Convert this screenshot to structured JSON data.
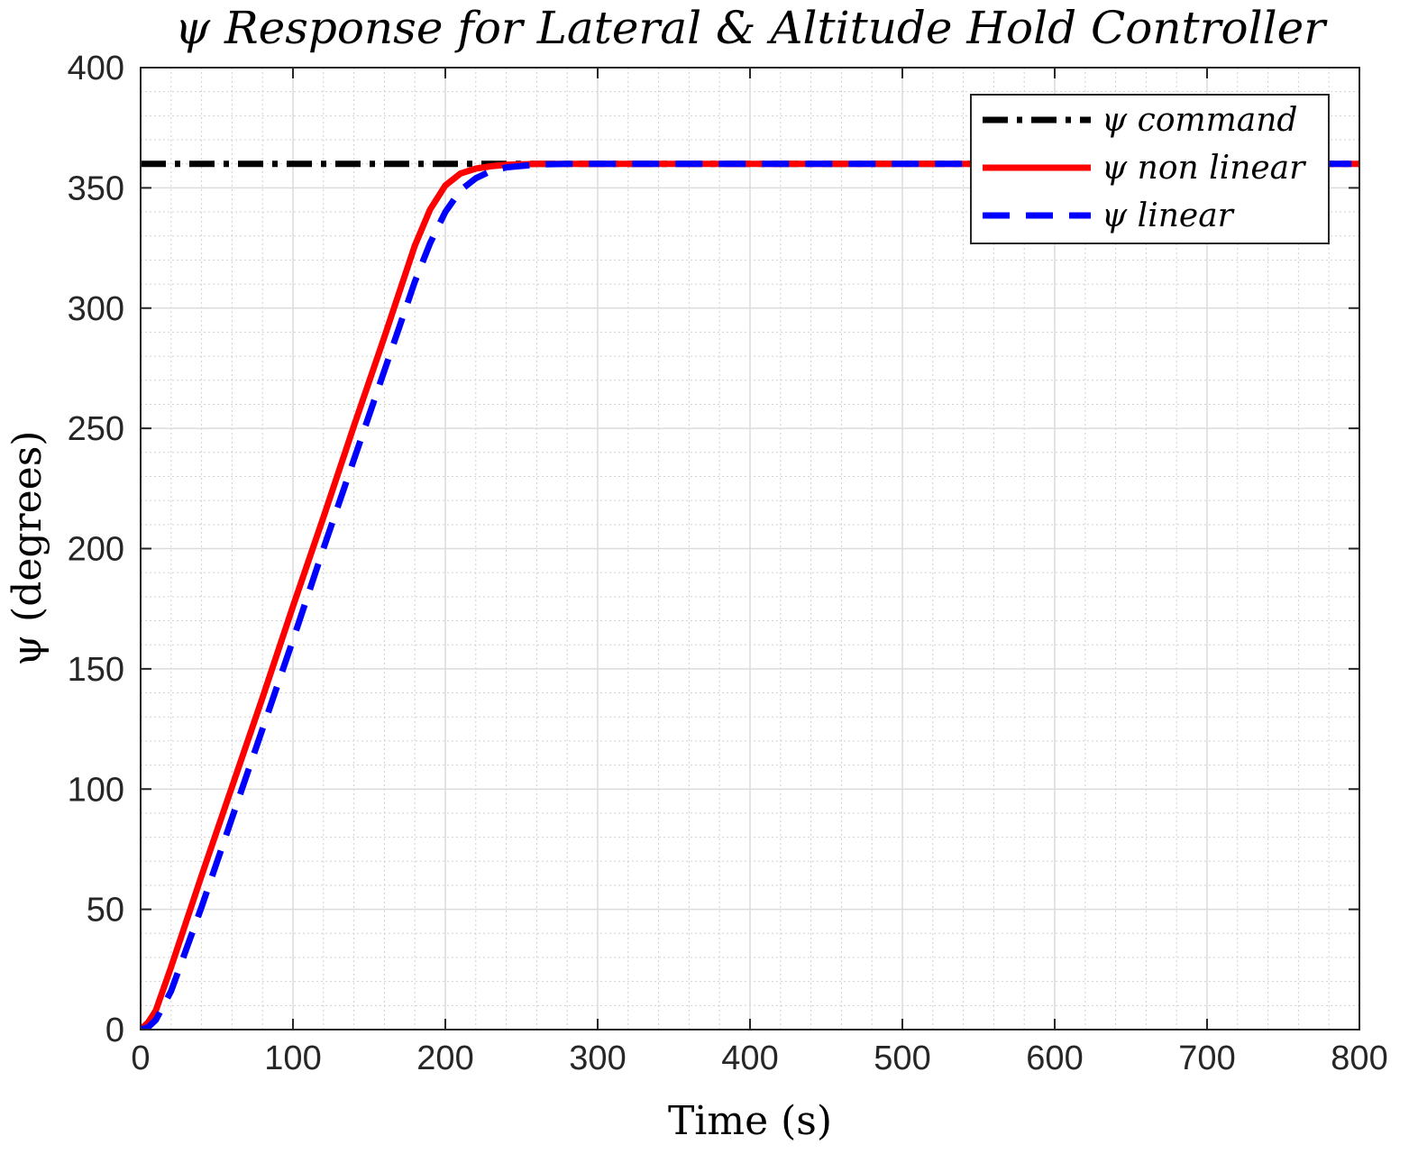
{
  "chart_data": {
    "type": "line",
    "title": "ψ Response for Lateral & Altitude Hold Controller",
    "xlabel": "Time (s)",
    "ylabel": "ψ (degrees)",
    "xlim": [
      0,
      800
    ],
    "ylim": [
      0,
      400
    ],
    "xticks": [
      "0",
      "100",
      "200",
      "300",
      "400",
      "500",
      "600",
      "700",
      "800"
    ],
    "yticks": [
      "0",
      "50",
      "100",
      "150",
      "200",
      "250",
      "300",
      "350",
      "400"
    ],
    "grid": true,
    "minor_grid": true,
    "legend_position": "top-right",
    "series": [
      {
        "name": "ψ command",
        "color": "#000000",
        "style": "dash-dot",
        "x": [
          0,
          800
        ],
        "y": [
          360,
          360
        ]
      },
      {
        "name": "ψ non linear",
        "color": "#ff0000",
        "style": "solid",
        "x": [
          0,
          5,
          10,
          20,
          40,
          60,
          80,
          100,
          120,
          140,
          160,
          180,
          190,
          200,
          210,
          220,
          230,
          240,
          260,
          280,
          300,
          400,
          500,
          600,
          700,
          800
        ],
        "y": [
          0,
          3,
          8,
          26,
          64,
          101,
          138,
          176,
          213,
          251,
          288,
          326,
          341,
          351,
          356,
          358,
          359,
          359.6,
          360,
          360,
          360,
          360,
          360,
          360,
          360,
          360
        ]
      },
      {
        "name": "ψ linear",
        "color": "#0000ff",
        "style": "dashed",
        "x": [
          0,
          5,
          10,
          20,
          40,
          60,
          80,
          100,
          120,
          140,
          160,
          180,
          190,
          200,
          210,
          220,
          230,
          240,
          260,
          280,
          300,
          400,
          500,
          600,
          700,
          800
        ],
        "y": [
          0,
          1,
          4,
          16,
          51,
          88,
          125,
          162,
          200,
          237,
          274,
          311,
          327,
          340,
          349,
          354,
          357,
          358.5,
          359.7,
          360,
          360,
          360,
          360,
          360,
          360,
          360
        ]
      }
    ]
  }
}
